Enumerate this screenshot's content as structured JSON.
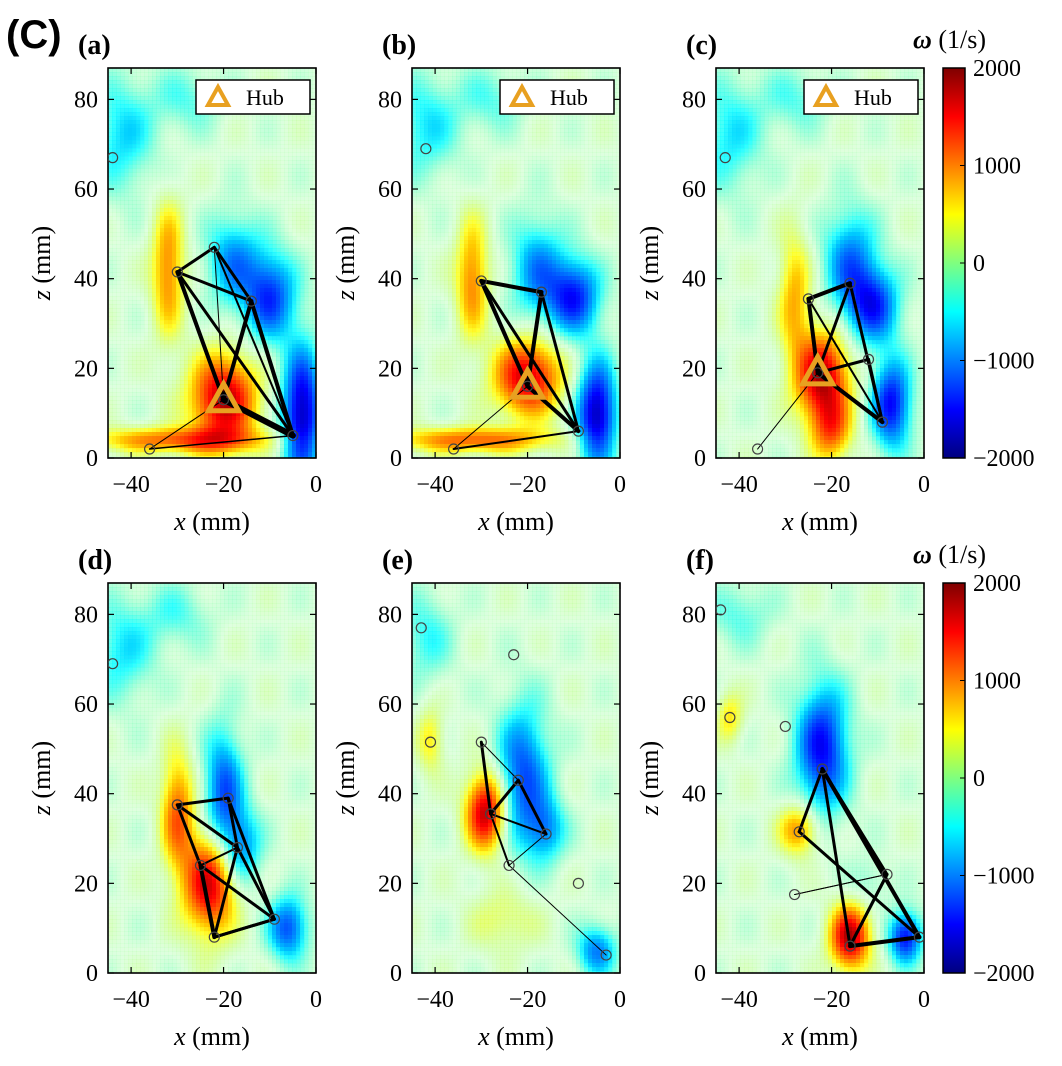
{
  "figure_label": "(C)",
  "colorbar": {
    "symbol": "ω",
    "units": "(1/s)",
    "ticks": [
      2000,
      1000,
      0,
      -1000,
      -2000
    ],
    "tick_labels": [
      "2000",
      "1000",
      "0",
      "−1000",
      "−2000"
    ],
    "range": [
      -2000,
      2000
    ],
    "colors": [
      "#00007f",
      "#0000ff",
      "#007fff",
      "#00ffff",
      "#7fff7f",
      "#ffff00",
      "#ff7f00",
      "#ff0000",
      "#7f0000"
    ]
  },
  "hub_color": "#e8a020",
  "edge_color": "#000000",
  "chart_data": [
    {
      "type": "network-over-contour",
      "panel": "(a)",
      "xlabel": "x (mm)",
      "ylabel": "z (mm)",
      "xlim": [
        -45,
        0
      ],
      "ylim": [
        0,
        87
      ],
      "xticks": [
        -40,
        -20,
        0
      ],
      "yticks": [
        0,
        20,
        40,
        60,
        80
      ],
      "legend": "Hub",
      "hub": [
        -20,
        13
      ],
      "nodes": [
        [
          -44,
          67
        ],
        [
          -30,
          41.5
        ],
        [
          -22,
          47
        ],
        [
          -14,
          35
        ],
        [
          -20,
          13
        ],
        [
          -5,
          5
        ],
        [
          -36,
          2
        ]
      ],
      "edges": [
        [
          1,
          2,
          3
        ],
        [
          1,
          3,
          3
        ],
        [
          1,
          4,
          4
        ],
        [
          1,
          5,
          3
        ],
        [
          2,
          3,
          3
        ],
        [
          2,
          4,
          1
        ],
        [
          2,
          5,
          2
        ],
        [
          3,
          4,
          4
        ],
        [
          3,
          5,
          4
        ],
        [
          4,
          5,
          6
        ],
        [
          6,
          5,
          1.5
        ],
        [
          6,
          4,
          1
        ]
      ],
      "blobs": [
        {
          "x": -20,
          "z": 13,
          "w": 1800,
          "sx": 5,
          "sz": 7
        },
        {
          "x": -32,
          "z": 42,
          "w": 1000,
          "sx": 2.5,
          "sz": 10
        },
        {
          "x": -18,
          "z": 44,
          "w": -900,
          "sx": 4,
          "sz": 7
        },
        {
          "x": -10,
          "z": 36,
          "w": -1300,
          "sx": 4,
          "sz": 7
        },
        {
          "x": -3,
          "z": 10,
          "w": -1800,
          "sx": 3,
          "sz": 10
        },
        {
          "x": -30,
          "z": 4,
          "w": 1100,
          "sx": 13,
          "sz": 2
        },
        {
          "x": -42,
          "z": 72,
          "w": -650,
          "sx": 5,
          "sz": 9
        },
        {
          "x": -28,
          "z": 80,
          "w": -400,
          "sx": 5,
          "sz": 5
        }
      ]
    },
    {
      "type": "network-over-contour",
      "panel": "(b)",
      "xlabel": "x (mm)",
      "ylabel": "z (mm)",
      "xlim": [
        -45,
        0
      ],
      "ylim": [
        0,
        87
      ],
      "xticks": [
        -40,
        -20,
        0
      ],
      "yticks": [
        0,
        20,
        40,
        60,
        80
      ],
      "legend": "Hub",
      "hub": [
        -20,
        16
      ],
      "nodes": [
        [
          -42,
          69
        ],
        [
          -30,
          39.5
        ],
        [
          -17,
          37
        ],
        [
          -20,
          16
        ],
        [
          -9,
          6
        ],
        [
          -36,
          2
        ]
      ],
      "edges": [
        [
          1,
          2,
          4
        ],
        [
          1,
          3,
          4
        ],
        [
          1,
          4,
          3
        ],
        [
          2,
          3,
          4
        ],
        [
          2,
          4,
          3
        ],
        [
          3,
          4,
          4
        ],
        [
          5,
          3,
          1
        ],
        [
          5,
          4,
          2
        ]
      ],
      "blobs": [
        {
          "x": -20,
          "z": 18,
          "w": 1700,
          "sx": 5,
          "sz": 6
        },
        {
          "x": -32,
          "z": 40,
          "w": 1000,
          "sx": 2.5,
          "sz": 9
        },
        {
          "x": -18,
          "z": 42,
          "w": -900,
          "sx": 4,
          "sz": 8
        },
        {
          "x": -10,
          "z": 36,
          "w": -1400,
          "sx": 4,
          "sz": 6
        },
        {
          "x": -5,
          "z": 10,
          "w": -1800,
          "sx": 3,
          "sz": 8
        },
        {
          "x": -32,
          "z": 4,
          "w": 1100,
          "sx": 12,
          "sz": 2
        },
        {
          "x": -42,
          "z": 74,
          "w": -600,
          "sx": 5,
          "sz": 8
        },
        {
          "x": -28,
          "z": 80,
          "w": -400,
          "sx": 5,
          "sz": 5
        }
      ]
    },
    {
      "type": "network-over-contour",
      "panel": "(c)",
      "xlabel": "x (mm)",
      "ylabel": "z (mm)",
      "xlim": [
        -45,
        0
      ],
      "ylim": [
        0,
        87
      ],
      "xticks": [
        -40,
        -20,
        0
      ],
      "yticks": [
        0,
        20,
        40,
        60,
        80
      ],
      "legend": "Hub",
      "hub": [
        -23,
        19
      ],
      "nodes": [
        [
          -43,
          67
        ],
        [
          -25,
          35.5
        ],
        [
          -16,
          39
        ],
        [
          -23,
          19
        ],
        [
          -9,
          8
        ],
        [
          -36,
          2
        ],
        [
          -12,
          22
        ]
      ],
      "edges": [
        [
          1,
          2,
          4
        ],
        [
          1,
          3,
          4
        ],
        [
          1,
          4,
          2
        ],
        [
          2,
          3,
          3
        ],
        [
          2,
          4,
          3
        ],
        [
          3,
          4,
          4
        ],
        [
          3,
          6,
          3
        ],
        [
          6,
          4,
          3
        ],
        [
          5,
          3,
          1
        ]
      ],
      "blobs": [
        {
          "x": -22,
          "z": 18,
          "w": 1800,
          "sx": 4,
          "sz": 7
        },
        {
          "x": -20,
          "z": 6,
          "w": 1000,
          "sx": 3,
          "sz": 5
        },
        {
          "x": -28,
          "z": 36,
          "w": 800,
          "sx": 2.5,
          "sz": 10
        },
        {
          "x": -16,
          "z": 44,
          "w": -1000,
          "sx": 4,
          "sz": 8
        },
        {
          "x": -11,
          "z": 34,
          "w": -1300,
          "sx": 4,
          "sz": 6
        },
        {
          "x": -7,
          "z": 12,
          "w": -1500,
          "sx": 3,
          "sz": 7
        },
        {
          "x": -42,
          "z": 72,
          "w": -600,
          "sx": 5,
          "sz": 9
        },
        {
          "x": -28,
          "z": 80,
          "w": -400,
          "sx": 5,
          "sz": 5
        }
      ]
    },
    {
      "type": "network-over-contour",
      "panel": "(d)",
      "xlabel": "x (mm)",
      "ylabel": "z (mm)",
      "xlim": [
        -45,
        0
      ],
      "ylim": [
        0,
        87
      ],
      "xticks": [
        -40,
        -20,
        0
      ],
      "yticks": [
        0,
        20,
        40,
        60,
        80
      ],
      "nodes": [
        [
          -44,
          69
        ],
        [
          -30,
          37.5
        ],
        [
          -19,
          39
        ],
        [
          -25,
          24
        ],
        [
          -17,
          28
        ],
        [
          -9,
          12
        ],
        [
          -22,
          8
        ]
      ],
      "edges": [
        [
          1,
          2,
          3
        ],
        [
          1,
          3,
          3
        ],
        [
          1,
          4,
          3
        ],
        [
          2,
          4,
          3
        ],
        [
          2,
          5,
          3
        ],
        [
          3,
          5,
          3
        ],
        [
          3,
          6,
          4
        ],
        [
          4,
          6,
          3
        ],
        [
          4,
          5,
          3
        ],
        [
          5,
          6,
          3
        ],
        [
          6,
          5,
          3
        ],
        [
          6,
          3,
          3
        ],
        [
          4,
          3,
          2
        ]
      ],
      "blobs": [
        {
          "x": -23,
          "z": 20,
          "w": 1700,
          "sx": 4,
          "sz": 8
        },
        {
          "x": -30,
          "z": 36,
          "w": 1100,
          "sx": 2.5,
          "sz": 9
        },
        {
          "x": -20,
          "z": 40,
          "w": -1200,
          "sx": 3,
          "sz": 10
        },
        {
          "x": -16,
          "z": 28,
          "w": -900,
          "sx": 3,
          "sz": 6
        },
        {
          "x": -6,
          "z": 10,
          "w": -1200,
          "sx": 3,
          "sz": 5
        },
        {
          "x": -42,
          "z": 72,
          "w": -600,
          "sx": 5,
          "sz": 8
        },
        {
          "x": -30,
          "z": 80,
          "w": -400,
          "sx": 5,
          "sz": 5
        }
      ]
    },
    {
      "type": "network-over-contour",
      "panel": "(e)",
      "xlabel": "x (mm)",
      "ylabel": "z (mm)",
      "xlim": [
        -45,
        0
      ],
      "ylim": [
        0,
        87
      ],
      "xticks": [
        -40,
        -20,
        0
      ],
      "yticks": [
        0,
        20,
        40,
        60,
        80
      ],
      "nodes": [
        [
          -43,
          77
        ],
        [
          -23,
          71
        ],
        [
          -41,
          51.5
        ],
        [
          -30,
          51.5
        ],
        [
          -22,
          43
        ],
        [
          -28,
          35.5
        ],
        [
          -16,
          31
        ],
        [
          -24,
          24
        ],
        [
          -9,
          20
        ],
        [
          -3,
          4
        ]
      ],
      "edges": [
        [
          3,
          4,
          1
        ],
        [
          3,
          5,
          3
        ],
        [
          4,
          5,
          3
        ],
        [
          4,
          6,
          3
        ],
        [
          5,
          6,
          2
        ],
        [
          5,
          7,
          2
        ],
        [
          7,
          6,
          1
        ],
        [
          7,
          9,
          1
        ],
        [
          5,
          7,
          1
        ]
      ],
      "blobs": [
        {
          "x": -29,
          "z": 36,
          "w": 1800,
          "sx": 3,
          "sz": 6
        },
        {
          "x": -21,
          "z": 44,
          "w": -1200,
          "sx": 4,
          "sz": 11
        },
        {
          "x": -16,
          "z": 32,
          "w": -800,
          "sx": 3,
          "sz": 5
        },
        {
          "x": -5,
          "z": 5,
          "w": -1000,
          "sx": 3,
          "sz": 4
        },
        {
          "x": -41,
          "z": 52,
          "w": 600,
          "sx": 2,
          "sz": 5
        },
        {
          "x": -42,
          "z": 75,
          "w": -500,
          "sx": 4,
          "sz": 7
        },
        {
          "x": -25,
          "z": 12,
          "w": 400,
          "sx": 5,
          "sz": 5
        }
      ]
    },
    {
      "type": "network-over-contour",
      "panel": "(f)",
      "xlabel": "x (mm)",
      "ylabel": "z (mm)",
      "xlim": [
        -45,
        0
      ],
      "ylim": [
        0,
        87
      ],
      "xticks": [
        -40,
        -20,
        0
      ],
      "yticks": [
        0,
        20,
        40,
        60,
        80
      ],
      "nodes": [
        [
          -44,
          81
        ],
        [
          -42,
          57
        ],
        [
          -30,
          55
        ],
        [
          -22,
          45.5
        ],
        [
          -27,
          31.5
        ],
        [
          -28,
          17.5
        ],
        [
          -8,
          22
        ],
        [
          -16,
          6
        ],
        [
          -1,
          8
        ]
      ],
      "edges": [
        [
          3,
          4,
          3
        ],
        [
          3,
          7,
          3
        ],
        [
          3,
          8,
          4
        ],
        [
          3,
          6,
          3
        ],
        [
          6,
          7,
          3
        ],
        [
          6,
          5,
          1
        ],
        [
          4,
          8,
          3
        ],
        [
          7,
          8,
          4
        ],
        [
          7,
          6,
          3
        ],
        [
          5,
          6,
          1
        ]
      ],
      "blobs": [
        {
          "x": -16,
          "z": 8,
          "w": 1800,
          "sx": 3,
          "sz": 5
        },
        {
          "x": -27,
          "z": 32,
          "w": 1000,
          "sx": 3,
          "sz": 4
        },
        {
          "x": -22,
          "z": 50,
          "w": -1500,
          "sx": 4,
          "sz": 10
        },
        {
          "x": -4,
          "z": 8,
          "w": -1500,
          "sx": 2.5,
          "sz": 4
        },
        {
          "x": -42,
          "z": 57,
          "w": 600,
          "sx": 2,
          "sz": 4
        },
        {
          "x": -12,
          "z": 20,
          "w": -300,
          "sx": 3,
          "sz": 4
        },
        {
          "x": -40,
          "z": 80,
          "w": -400,
          "sx": 5,
          "sz": 5
        }
      ]
    }
  ]
}
